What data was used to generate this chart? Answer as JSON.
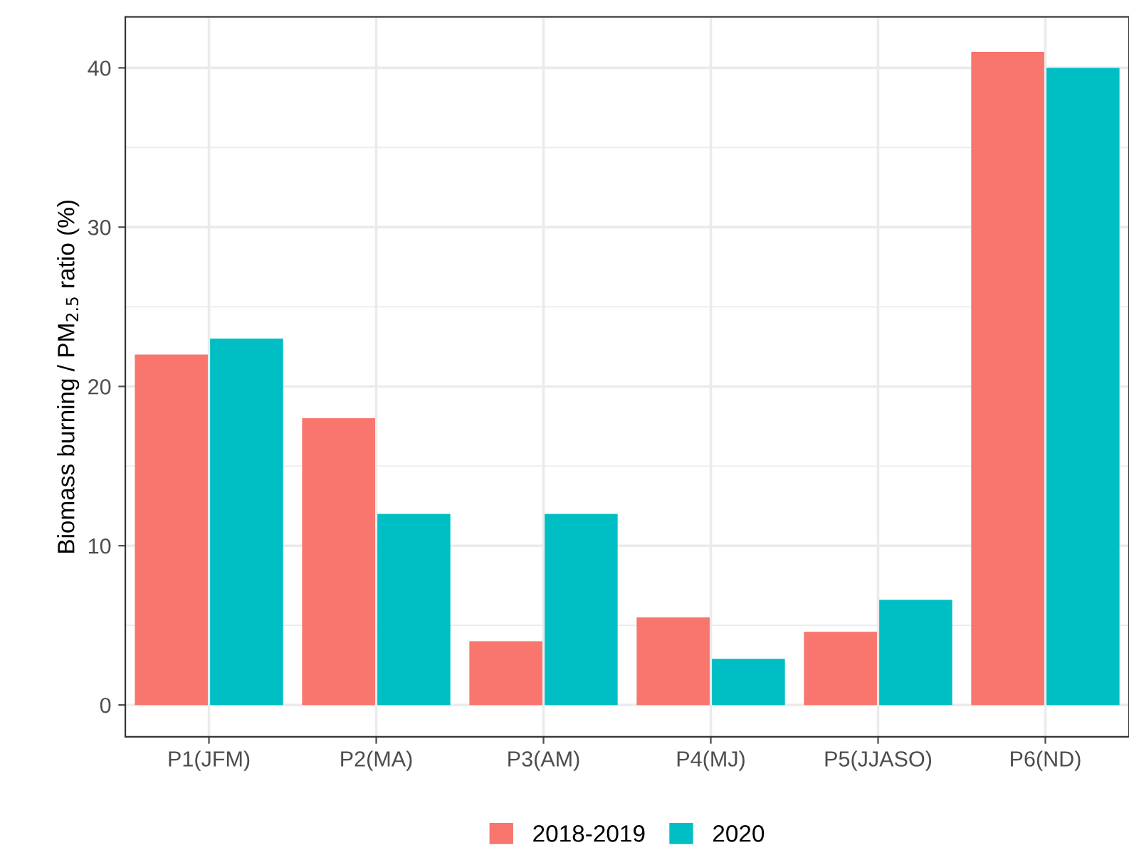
{
  "chart_data": {
    "type": "bar",
    "ylabel": "Biomass burning / PM$_{2.5}$ ratio (%)",
    "categories": [
      "P1(JFM)",
      "P2(MA)",
      "P3(AM)",
      "P4(MJ)",
      "P5(JJASO)",
      "P6(ND)"
    ],
    "series": [
      {
        "name": "2018-2019",
        "color": "#f8766d",
        "values": [
          22,
          18,
          4,
          5.5,
          4.6,
          41
        ]
      },
      {
        "name": "2020",
        "color": "#00bfc4",
        "values": [
          23,
          12,
          12,
          2.9,
          6.6,
          40
        ]
      }
    ],
    "ylim": [
      -2,
      43.2
    ],
    "yticks": [
      0,
      10,
      20,
      30,
      40
    ],
    "grid": true,
    "legend": "bottom"
  }
}
